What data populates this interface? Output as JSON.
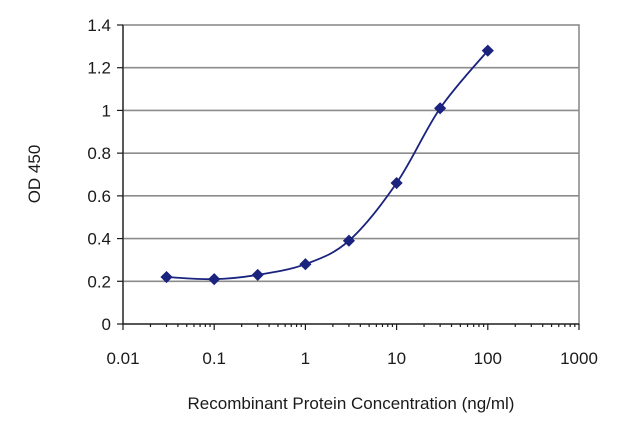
{
  "chart_data": {
    "type": "line",
    "title": "",
    "xlabel": "Recombinant Protein Concentration (ng/ml)",
    "ylabel": "OD 450",
    "x_scale": "log",
    "xlim": [
      0.01,
      1000
    ],
    "ylim": [
      0,
      1.4
    ],
    "x_ticks": [
      0.01,
      0.1,
      1,
      10,
      100,
      1000
    ],
    "x_tick_labels": [
      "0.01",
      "0.1",
      "1",
      "10",
      "100",
      "1000"
    ],
    "y_ticks": [
      0,
      0.2,
      0.4,
      0.6,
      0.8,
      1,
      1.2,
      1.4
    ],
    "y_tick_labels": [
      "0",
      "0.2",
      "0.4",
      "0.6",
      "0.8",
      "1",
      "1.2",
      "1.4"
    ],
    "grid": "horizontal",
    "legend": "none",
    "series": [
      {
        "color": "#1a237e",
        "marker": "diamond",
        "x": [
          0.03,
          0.1,
          0.3,
          1,
          3,
          10,
          30,
          100
        ],
        "y": [
          0.22,
          0.21,
          0.23,
          0.28,
          0.39,
          0.66,
          1.01,
          1.28
        ]
      }
    ]
  }
}
